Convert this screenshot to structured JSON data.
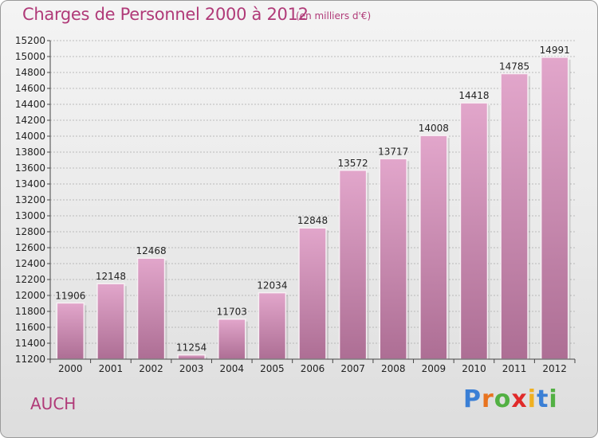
{
  "title": "Charges de Personnel 2000 à 2012",
  "subtitle": "(en milliers d'€)",
  "city": "AUCH",
  "logo": {
    "text": "Proxiti",
    "letter_colors": [
      "#3a7fd5",
      "#e8731f",
      "#52b043",
      "#e02a2a",
      "#f0b020",
      "#3a7fd5",
      "#52b043"
    ]
  },
  "colors": {
    "title": "#b03a78",
    "bar_light": "#e2a6cb",
    "bar_dark": "#ad6e94",
    "grid": "#aaaaaa"
  },
  "chart_data": {
    "type": "bar",
    "title": "Charges de Personnel 2000 à 2012",
    "xlabel": "",
    "ylabel": "",
    "categories": [
      "2000",
      "2001",
      "2002",
      "2003",
      "2004",
      "2005",
      "2006",
      "2007",
      "2008",
      "2009",
      "2010",
      "2011",
      "2012"
    ],
    "values": [
      11906,
      12148,
      12468,
      11254,
      11703,
      12034,
      12848,
      13572,
      13717,
      14008,
      14418,
      14785,
      14991
    ],
    "ylim": [
      11200,
      15200
    ],
    "ytick_step": 200,
    "grid": true,
    "data_labels": true
  }
}
